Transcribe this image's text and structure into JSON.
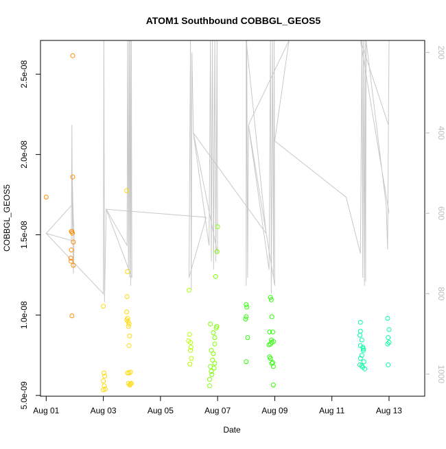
{
  "chart_data": {
    "type": "scatter",
    "title": "ATOM1 Southbound COBBGL_GEOS5",
    "xlabel": "Date",
    "ylabel": "COBBGL_GEOS5",
    "xlim": [
      -0.2,
      13.25
    ],
    "ylim": [
      4.95e-09,
      2.71e-08
    ],
    "x_ticks": [
      {
        "value": 0,
        "label": "Aug 01"
      },
      {
        "value": 2,
        "label": "Aug 03"
      },
      {
        "value": 4,
        "label": "Aug 05"
      },
      {
        "value": 6,
        "label": "Aug 07"
      },
      {
        "value": 8,
        "label": "Aug 09"
      },
      {
        "value": 10,
        "label": "Aug 11"
      },
      {
        "value": 12,
        "label": "Aug 13"
      }
    ],
    "y_ticks": [
      {
        "value": 5e-09,
        "label": "5.0e-09"
      },
      {
        "value": 1e-08,
        "label": "1.0e-08"
      },
      {
        "value": 1.5e-08,
        "label": "1.5e-08"
      },
      {
        "value": 2e-08,
        "label": "2.0e-08"
      },
      {
        "value": 2.5e-08,
        "label": "2.5e-08"
      }
    ],
    "secondary_axis": {
      "position": "right",
      "ylim": [
        1055,
        170
      ],
      "ticks": [
        {
          "value": 200,
          "label": "200"
        },
        {
          "value": 400,
          "label": "400"
        },
        {
          "value": 600,
          "label": "600"
        },
        {
          "value": 800,
          "label": "800"
        },
        {
          "value": 1000,
          "label": "1000"
        }
      ],
      "line_color": "#c8c8c8",
      "line": [
        [
          0.0,
          650
        ],
        [
          0.9,
          668
        ],
        [
          0.88,
          670
        ],
        [
          0.9,
          380
        ],
        [
          0.92,
          640
        ],
        [
          0.95,
          620
        ],
        [
          0.9,
          470
        ],
        [
          0.95,
          750
        ],
        [
          0.97,
          700
        ],
        [
          0.98,
          660
        ],
        [
          0.92,
          560
        ],
        [
          0.89,
          580
        ],
        [
          0.0,
          650
        ],
        [
          2.0,
          800
        ],
        [
          2.02,
          170
        ],
        [
          2.04,
          820
        ],
        [
          2.1,
          590
        ],
        [
          2.83,
          680
        ],
        [
          2.85,
          170
        ],
        [
          2.88,
          740
        ],
        [
          2.9,
          170
        ],
        [
          2.92,
          760
        ],
        [
          2.94,
          170
        ],
        [
          2.96,
          780
        ],
        [
          2.98,
          170
        ],
        [
          3.0,
          760
        ],
        [
          2.1,
          590
        ],
        [
          5.6,
          610
        ],
        [
          5.0,
          760
        ],
        [
          5.05,
          170
        ],
        [
          5.08,
          790
        ],
        [
          5.1,
          200
        ],
        [
          5.15,
          400
        ],
        [
          5.7,
          680
        ],
        [
          5.75,
          170
        ],
        [
          5.78,
          720
        ],
        [
          5.82,
          170
        ],
        [
          5.86,
          740
        ],
        [
          5.9,
          170
        ],
        [
          5.94,
          720
        ],
        [
          5.98,
          170
        ],
        [
          6.0,
          700
        ],
        [
          5.15,
          400
        ],
        [
          7.7,
          650
        ],
        [
          7.0,
          170
        ],
        [
          7.0,
          780
        ],
        [
          7.02,
          170
        ],
        [
          7.05,
          760
        ],
        [
          7.08,
          380
        ],
        [
          7.8,
          740
        ],
        [
          7.85,
          170
        ],
        [
          7.88,
          800
        ],
        [
          7.92,
          170
        ],
        [
          7.96,
          760
        ],
        [
          7.98,
          170
        ],
        [
          8.0,
          780
        ],
        [
          7.08,
          380
        ],
        [
          8.5,
          170
        ],
        [
          8.0,
          420
        ],
        [
          10.5,
          560
        ],
        [
          11.0,
          700
        ],
        [
          11.05,
          170
        ],
        [
          11.08,
          760
        ],
        [
          11.1,
          170
        ],
        [
          11.14,
          780
        ],
        [
          11.16,
          170
        ],
        [
          11.18,
          770
        ],
        [
          11.2,
          170
        ],
        [
          11.9,
          580
        ],
        [
          11.95,
          690
        ],
        [
          12.0,
          170
        ],
        [
          11.98,
          380
        ],
        [
          11.0,
          170
        ],
        [
          12.0,
          600
        ]
      ]
    },
    "series": [
      {
        "color": "#ff8c00",
        "points": [
          [
            0.0,
            1.735e-08
          ],
          [
            0.88,
            1.52e-08
          ],
          [
            0.9,
            1.52e-08
          ],
          [
            0.92,
            1.51e-08
          ],
          [
            0.95,
            1.455e-08
          ],
          [
            0.88,
            1.405e-08
          ],
          [
            0.86,
            1.355e-08
          ],
          [
            0.87,
            1.335e-08
          ],
          [
            0.95,
            1.31e-08
          ],
          [
            0.9,
            9.95e-09
          ],
          [
            0.93,
            1.86e-08
          ],
          [
            0.93,
            2.615e-08
          ]
        ]
      },
      {
        "color": "#ffd800",
        "points": [
          [
            2.82,
            1.775e-08
          ],
          [
            2.84,
            1.27e-08
          ],
          [
            2.83,
            1.115e-08
          ],
          [
            2.82,
            1.02e-08
          ],
          [
            2.85,
            9.8e-09
          ],
          [
            2.87,
            9.6e-09
          ],
          [
            2.9,
            9.45e-09
          ],
          [
            2.88,
            9.3e-09
          ],
          [
            2.92,
            8.7e-09
          ],
          [
            2.9,
            8.1e-09
          ],
          [
            2.0,
            1.055e-08
          ],
          [
            2.02,
            6.4e-09
          ],
          [
            2.05,
            6.2e-09
          ],
          [
            2.0,
            5.9e-09
          ],
          [
            2.03,
            5.6e-09
          ],
          [
            2.07,
            5.4e-09
          ],
          [
            2.0,
            5.35e-09
          ],
          [
            2.85,
            6.4e-09
          ],
          [
            2.9,
            6.4e-09
          ],
          [
            2.95,
            6.45e-09
          ],
          [
            2.88,
            5.75e-09
          ],
          [
            2.95,
            5.7e-09
          ],
          [
            2.92,
            5.65e-09
          ],
          [
            2.98,
            5.75e-09
          ],
          [
            2.82,
            9.7e-09
          ]
        ]
      },
      {
        "color": "#b4ff00",
        "points": [
          [
            5.0,
            1.155e-08
          ],
          [
            5.02,
            8.8e-09
          ],
          [
            4.98,
            8.4e-09
          ],
          [
            5.05,
            8.3e-09
          ],
          [
            5.07,
            8e-09
          ],
          [
            5.05,
            7.8e-09
          ],
          [
            5.08,
            7.3e-09
          ],
          [
            5.03,
            6.95e-09
          ]
        ]
      },
      {
        "color": "#7dff00",
        "points": [
          [
            5.75,
            9.45e-09
          ],
          [
            5.85,
            8.9e-09
          ],
          [
            5.9,
            8.2e-09
          ],
          [
            5.78,
            7.8e-09
          ],
          [
            5.82,
            7.2e-09
          ],
          [
            5.9,
            7e-09
          ],
          [
            5.75,
            6.8e-09
          ],
          [
            5.88,
            6.7e-09
          ],
          [
            5.8,
            6.3e-09
          ],
          [
            5.72,
            6e-09
          ],
          [
            6.0,
            1.55e-08
          ],
          [
            5.98,
            1.395e-08
          ],
          [
            5.93,
            1.24e-08
          ],
          [
            5.97,
            9.3e-09
          ],
          [
            5.95,
            9.2e-09
          ],
          [
            5.9,
            8.6e-09
          ],
          [
            5.85,
            7.6e-09
          ],
          [
            5.78,
            6.5e-09
          ],
          [
            5.72,
            5.6e-09
          ]
        ]
      },
      {
        "color": "#2aff00",
        "points": [
          [
            7.0,
            1.065e-08
          ],
          [
            7.02,
            1.05e-08
          ],
          [
            7.0,
            9.9e-09
          ],
          [
            6.98,
            9.75e-09
          ],
          [
            7.05,
            8.6e-09
          ],
          [
            7.0,
            7.1e-09
          ],
          [
            7.85,
            1.11e-08
          ],
          [
            7.88,
            1.095e-08
          ],
          [
            7.9,
            9.9e-09
          ],
          [
            7.93,
            8.95e-09
          ],
          [
            7.85,
            8.2e-09
          ],
          [
            7.88,
            8.45e-09
          ],
          [
            7.9,
            8.3e-09
          ],
          [
            7.96,
            8.35e-09
          ],
          [
            7.82,
            7.4e-09
          ],
          [
            7.85,
            7.3e-09
          ],
          [
            7.9,
            7e-09
          ],
          [
            7.95,
            6.8e-09
          ],
          [
            7.82,
            8.95e-09
          ],
          [
            7.95,
            5.65e-09
          ],
          [
            7.8,
            8.15e-09
          ],
          [
            7.93,
            7.05e-09
          ]
        ]
      },
      {
        "color": "#00ffa0",
        "points": [
          [
            11.0,
            9.55e-09
          ],
          [
            11.0,
            9e-09
          ],
          [
            10.98,
            8.75e-09
          ],
          [
            11.05,
            8.45e-09
          ],
          [
            11.0,
            8.1e-09
          ],
          [
            11.08,
            8e-09
          ],
          [
            11.1,
            7.8e-09
          ],
          [
            11.05,
            7.5e-09
          ],
          [
            11.0,
            7.3e-09
          ],
          [
            11.12,
            7.1e-09
          ],
          [
            10.98,
            6.9e-09
          ],
          [
            11.05,
            6.85e-09
          ],
          [
            11.08,
            6.75e-09
          ],
          [
            11.15,
            6.65e-09
          ],
          [
            11.1,
            7.9e-09
          ],
          [
            11.95,
            9.8e-09
          ],
          [
            12.0,
            9.1e-09
          ],
          [
            11.97,
            8.6e-09
          ],
          [
            12.0,
            8.3e-09
          ],
          [
            11.95,
            8.2e-09
          ],
          [
            11.97,
            6.9e-09
          ]
        ]
      }
    ]
  }
}
